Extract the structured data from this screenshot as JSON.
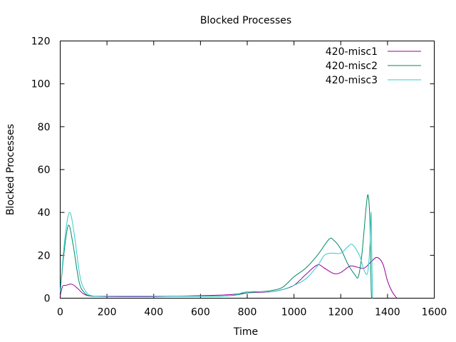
{
  "chart_data": {
    "type": "line",
    "title": "Blocked Processes",
    "xlabel": "Time",
    "ylabel": "Blocked Processes",
    "xlim": [
      0,
      1600
    ],
    "ylim": [
      0,
      120
    ],
    "xticks": [
      0,
      200,
      400,
      600,
      800,
      1000,
      1200,
      1400,
      1600
    ],
    "yticks": [
      0,
      20,
      40,
      60,
      80,
      100,
      120
    ],
    "xtick_labels": [
      "0",
      "200",
      "400",
      "600",
      "800",
      "1000",
      "1200",
      "1400",
      "1600"
    ],
    "ytick_labels": [
      "0",
      "20",
      "40",
      "60",
      "80",
      "100",
      "120"
    ],
    "grid": false,
    "legend_position": "top-right",
    "series": [
      {
        "name": "420-misc1",
        "color": "#990099",
        "points": [
          [
            0,
            1
          ],
          [
            10,
            5.5
          ],
          [
            25,
            6
          ],
          [
            50,
            6.5
          ],
          [
            75,
            4.5
          ],
          [
            100,
            2
          ],
          [
            130,
            1
          ],
          [
            200,
            0.8
          ],
          [
            400,
            0.8
          ],
          [
            700,
            1.5
          ],
          [
            800,
            2.5
          ],
          [
            900,
            3
          ],
          [
            950,
            4
          ],
          [
            1000,
            6
          ],
          [
            1050,
            11
          ],
          [
            1100,
            15.5
          ],
          [
            1130,
            14
          ],
          [
            1170,
            11.5
          ],
          [
            1200,
            12
          ],
          [
            1240,
            15
          ],
          [
            1270,
            14.5
          ],
          [
            1300,
            14
          ],
          [
            1330,
            17
          ],
          [
            1355,
            19
          ],
          [
            1380,
            16
          ],
          [
            1400,
            8
          ],
          [
            1420,
            3
          ],
          [
            1440,
            0
          ]
        ]
      },
      {
        "name": "420-misc2",
        "color": "#008866",
        "points": [
          [
            0,
            2
          ],
          [
            15,
            20
          ],
          [
            35,
            34
          ],
          [
            55,
            25
          ],
          [
            80,
            8
          ],
          [
            100,
            3
          ],
          [
            130,
            1
          ],
          [
            200,
            1
          ],
          [
            400,
            1
          ],
          [
            700,
            1
          ],
          [
            800,
            2.5
          ],
          [
            850,
            3
          ],
          [
            900,
            3.5
          ],
          [
            950,
            5
          ],
          [
            1000,
            10
          ],
          [
            1050,
            14
          ],
          [
            1100,
            20
          ],
          [
            1150,
            27.5
          ],
          [
            1170,
            27
          ],
          [
            1200,
            23
          ],
          [
            1230,
            16
          ],
          [
            1260,
            11
          ],
          [
            1275,
            10
          ],
          [
            1290,
            20
          ],
          [
            1310,
            44
          ],
          [
            1318,
            47.5
          ],
          [
            1325,
            35
          ],
          [
            1330,
            5
          ],
          [
            1333,
            0
          ]
        ]
      },
      {
        "name": "420-misc3",
        "color": "#33cccc",
        "points": [
          [
            0,
            3
          ],
          [
            20,
            28
          ],
          [
            40,
            40
          ],
          [
            60,
            30
          ],
          [
            85,
            10
          ],
          [
            110,
            3
          ],
          [
            140,
            1
          ],
          [
            200,
            1
          ],
          [
            400,
            1
          ],
          [
            700,
            1
          ],
          [
            800,
            3
          ],
          [
            900,
            3
          ],
          [
            950,
            4
          ],
          [
            1000,
            6
          ],
          [
            1050,
            9
          ],
          [
            1100,
            15
          ],
          [
            1130,
            20
          ],
          [
            1160,
            21
          ],
          [
            1200,
            21
          ],
          [
            1230,
            24
          ],
          [
            1250,
            25
          ],
          [
            1280,
            20
          ],
          [
            1300,
            13
          ],
          [
            1315,
            12
          ],
          [
            1325,
            25
          ],
          [
            1330,
            40
          ],
          [
            1333,
            20
          ],
          [
            1336,
            0
          ]
        ]
      }
    ]
  }
}
